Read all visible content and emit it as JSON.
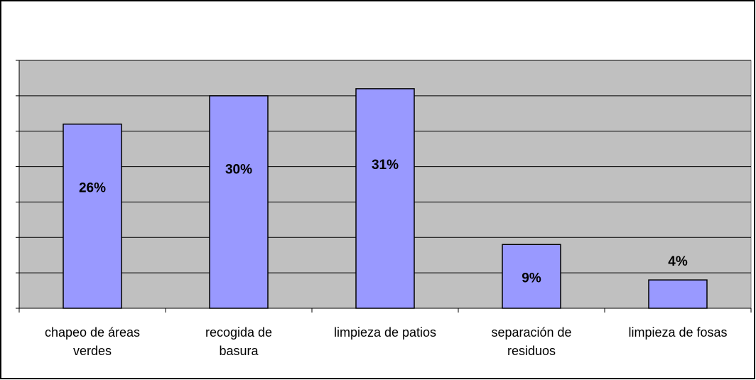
{
  "chart_data": {
    "type": "bar",
    "categories": [
      "chapeo de áreas\nverdes",
      "recogida de\nbasura",
      "limpieza de patios",
      "separación de\nresiduos",
      "limpieza de fosas"
    ],
    "values": [
      26,
      30,
      31,
      9,
      4
    ],
    "value_labels": [
      "26%",
      "30%",
      "31%",
      "9%",
      "4%"
    ],
    "color": "#9999ff",
    "ylim": [
      0,
      35
    ],
    "yticks": [
      0,
      5,
      10,
      15,
      20,
      25,
      30,
      35
    ],
    "grid": true
  }
}
